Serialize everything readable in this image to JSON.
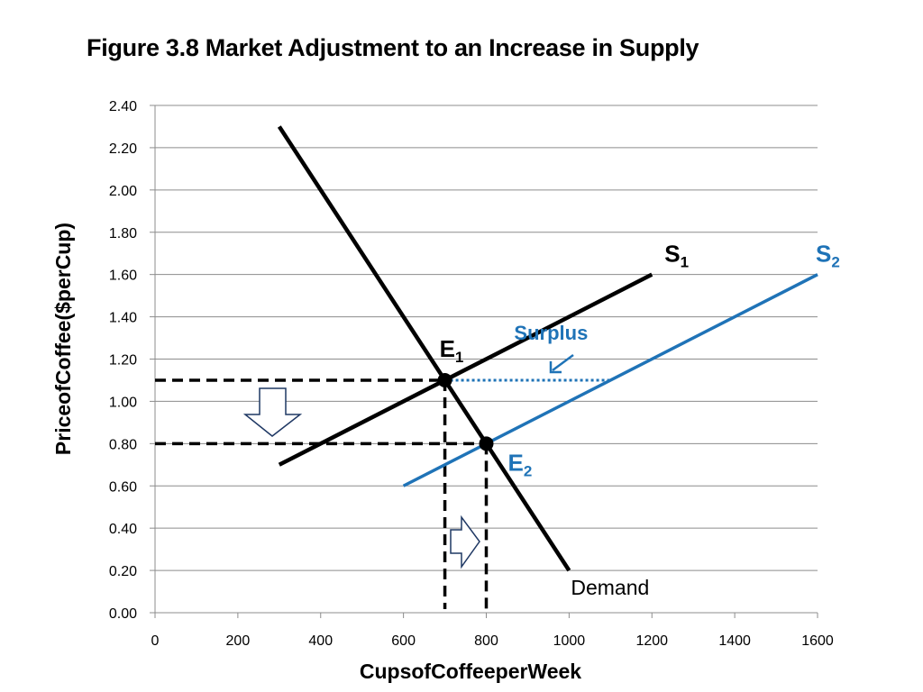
{
  "title": "Figure 3.8  Market Adjustment to an Increase in Supply",
  "colors": {
    "s1": "#000000",
    "s2": "#1f73b7",
    "demand": "#000000",
    "grid": "#8c8c8c",
    "arrow_outline": "#1f3864"
  },
  "chart_data": {
    "type": "line",
    "xlabel": "Cups\u0003of\u0003Coffee\u0003per\u0003Week",
    "ylabel": "Price\u0003of\u0003Coffee\u0003($\u0003per\u0003Cup)",
    "xlim": [
      0,
      1600
    ],
    "ylim": [
      0,
      2.4
    ],
    "x_ticks": [
      "0",
      "200",
      "400",
      "600",
      "800",
      "1000",
      "1200",
      "1400",
      "1600"
    ],
    "y_ticks": [
      "0.00",
      "0.20",
      "0.40",
      "0.60",
      "0.80",
      "1.00",
      "1.20",
      "1.40",
      "1.60",
      "1.80",
      "2.00",
      "2.20",
      "2.40"
    ],
    "grid": "horizontal",
    "series": [
      {
        "key": "demand",
        "name": "Demand",
        "x": [
          300,
          1000
        ],
        "y": [
          2.3,
          0.2
        ]
      },
      {
        "key": "s1",
        "name": "S",
        "sub": "1",
        "x": [
          300,
          1200
        ],
        "y": [
          0.7,
          1.6
        ]
      },
      {
        "key": "s2",
        "name": "S",
        "sub": "2",
        "x": [
          600,
          1600
        ],
        "y": [
          0.6,
          1.6
        ]
      }
    ],
    "equilibria": [
      {
        "name": "E",
        "sub": "1",
        "x": 700,
        "y": 1.1
      },
      {
        "name": "E",
        "sub": "2",
        "x": 800,
        "y": 0.8
      }
    ],
    "surplus": {
      "label": "Surplus",
      "x_start": 700,
      "x_end": 1100,
      "y": 1.1
    }
  }
}
